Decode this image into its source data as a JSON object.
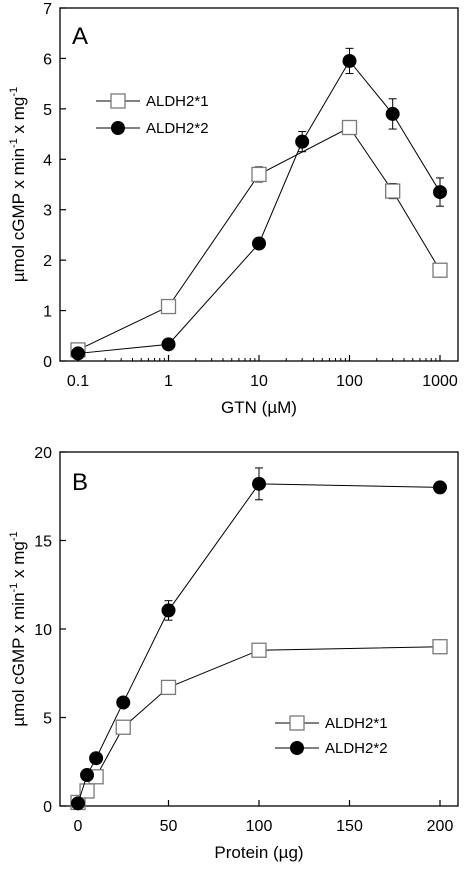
{
  "chart_data": [
    {
      "type": "line",
      "panel_label": "A",
      "xscale": "log",
      "xlabel": "GTN (µM)",
      "ylabel": "µmol cGMP x min",
      "ylabel_exp1": "-1",
      "ylabel_mid": " x mg",
      "ylabel_exp2": "-1",
      "xlim": [
        0.1,
        1000
      ],
      "ylim": [
        0,
        7
      ],
      "xticks": [
        0.1,
        1,
        10,
        100,
        1000
      ],
      "xtick_labels": [
        "0.1",
        "1",
        "10",
        "100",
        "1000"
      ],
      "yticks": [
        0,
        1,
        2,
        3,
        4,
        5,
        6,
        7
      ],
      "ytick_labels": [
        "0",
        "1",
        "2",
        "3",
        "4",
        "5",
        "6",
        "7"
      ],
      "legend_position": "upper-left",
      "series": [
        {
          "name": "ALDH2*1",
          "marker": "open-square",
          "x": [
            0.1,
            1,
            10,
            100,
            300,
            1000
          ],
          "y": [
            0.22,
            1.08,
            3.7,
            4.63,
            3.37,
            1.8
          ],
          "err": [
            0.05,
            0.06,
            0.15,
            0.1,
            0.15,
            0.06
          ]
        },
        {
          "name": "ALDH2*2",
          "marker": "filled-circle",
          "x": [
            0.1,
            1,
            10,
            30,
            100,
            300,
            1000
          ],
          "y": [
            0.15,
            0.33,
            2.33,
            4.35,
            5.95,
            4.9,
            3.35
          ],
          "err": [
            0.04,
            0.04,
            0.06,
            0.2,
            0.25,
            0.3,
            0.28
          ]
        }
      ]
    },
    {
      "type": "line",
      "panel_label": "B",
      "xscale": "linear",
      "xlabel": "Protein (µg)",
      "ylabel": "µmol cGMP x min",
      "ylabel_exp1": "-1",
      "ylabel_mid": " x mg",
      "ylabel_exp2": "-1",
      "xlim": [
        0,
        200
      ],
      "ylim": [
        0,
        20
      ],
      "xticks": [
        0,
        50,
        100,
        150,
        200
      ],
      "xtick_labels": [
        "0",
        "50",
        "100",
        "150",
        "200"
      ],
      "yticks": [
        0,
        5,
        10,
        15,
        20
      ],
      "ytick_labels": [
        "0",
        "5",
        "10",
        "15",
        "20"
      ],
      "legend_position": "lower-right",
      "series": [
        {
          "name": "ALDH2*1",
          "marker": "open-square",
          "x": [
            0,
            5,
            10,
            25,
            50,
            100,
            200
          ],
          "y": [
            0.2,
            0.85,
            1.65,
            4.45,
            6.7,
            8.8,
            9.0
          ],
          "err": [
            0.05,
            0.1,
            0.1,
            0.2,
            0.2,
            0.2,
            0.2
          ]
        },
        {
          "name": "ALDH2*2",
          "marker": "filled-circle",
          "x": [
            0,
            5,
            10,
            25,
            50,
            100,
            200
          ],
          "y": [
            0.15,
            1.75,
            2.7,
            5.85,
            11.05,
            18.2,
            18.0
          ],
          "err": [
            0.05,
            0.1,
            0.1,
            0.2,
            0.55,
            0.9,
            0.1
          ]
        }
      ]
    }
  ]
}
